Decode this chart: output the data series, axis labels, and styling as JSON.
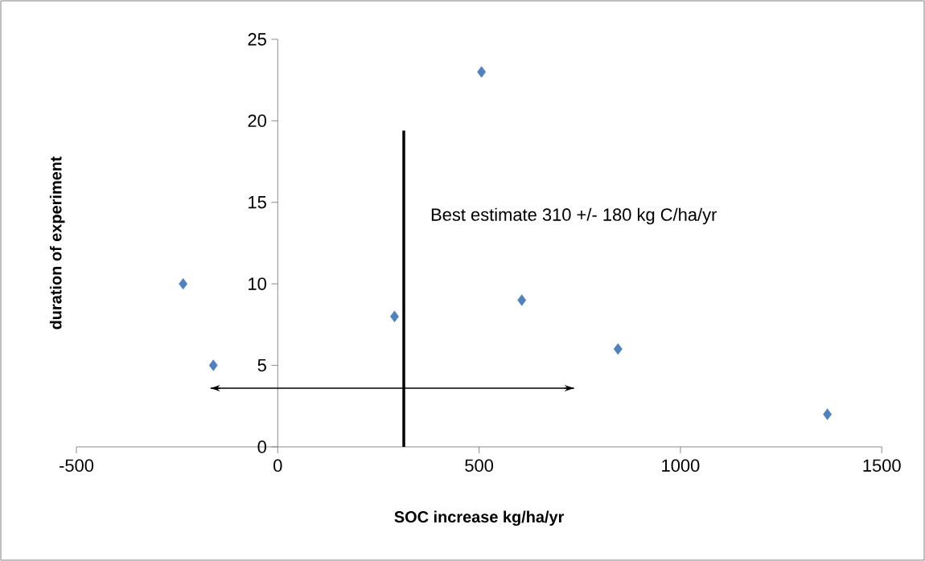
{
  "chart_data": {
    "type": "scatter",
    "xlabel": "SOC increase kg/ha/yr",
    "ylabel": "duration of experiment",
    "xlim": [
      -500,
      1500
    ],
    "xticks": [
      -500,
      0,
      500,
      1000,
      1500
    ],
    "ylim": [
      0,
      25
    ],
    "yticks": [
      0,
      5,
      10,
      15,
      20,
      25
    ],
    "grid": false,
    "series": [
      {
        "color": "#4f81bd",
        "marker": "diamond",
        "x": [
          -235,
          -160,
          290,
          506,
          606,
          845,
          1365
        ],
        "values": [
          10,
          5,
          8,
          23,
          9,
          6,
          2
        ]
      },
      {
        "type": "line",
        "color": "#000000",
        "marker": "none",
        "x": [
          313,
          313
        ],
        "values": [
          0,
          19.4
        ]
      },
      {
        "type": "line",
        "color": "#000000",
        "marker": "none",
        "line_style": "solid",
        "x": [
          -167,
          736
        ],
        "values": [
          3.6,
          3.6
        ]
      }
    ],
    "annotations": [
      "Best estimate 310 +/- 180 kg C/ha/yr"
    ]
  }
}
